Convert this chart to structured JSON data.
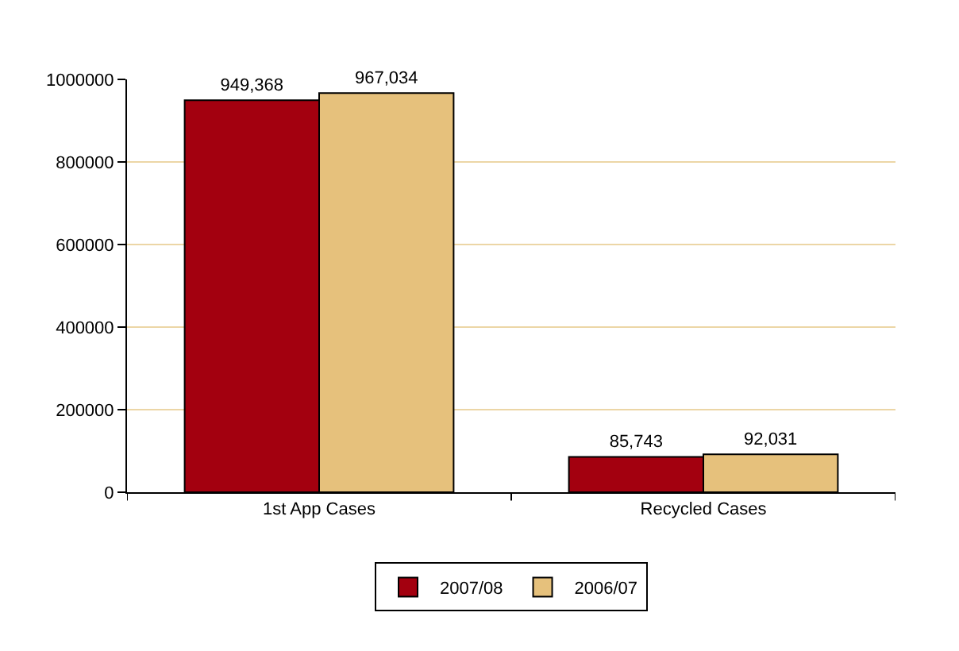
{
  "chart_data": {
    "type": "bar",
    "categories": [
      "1st App Cases",
      "Recycled Cases"
    ],
    "series": [
      {
        "name": "2007/08",
        "color": "#a3000f",
        "values": [
          949368,
          85743
        ],
        "value_labels": [
          "949,368",
          "85,743"
        ]
      },
      {
        "name": "2006/07",
        "color": "#e6c17c",
        "values": [
          967034,
          92031
        ],
        "value_labels": [
          "967,034",
          "92,031"
        ]
      }
    ],
    "ylim": [
      0,
      1000000
    ],
    "yticks": [
      0,
      200000,
      400000,
      600000,
      800000,
      1000000
    ],
    "grid": "y",
    "legend": "bottom"
  }
}
